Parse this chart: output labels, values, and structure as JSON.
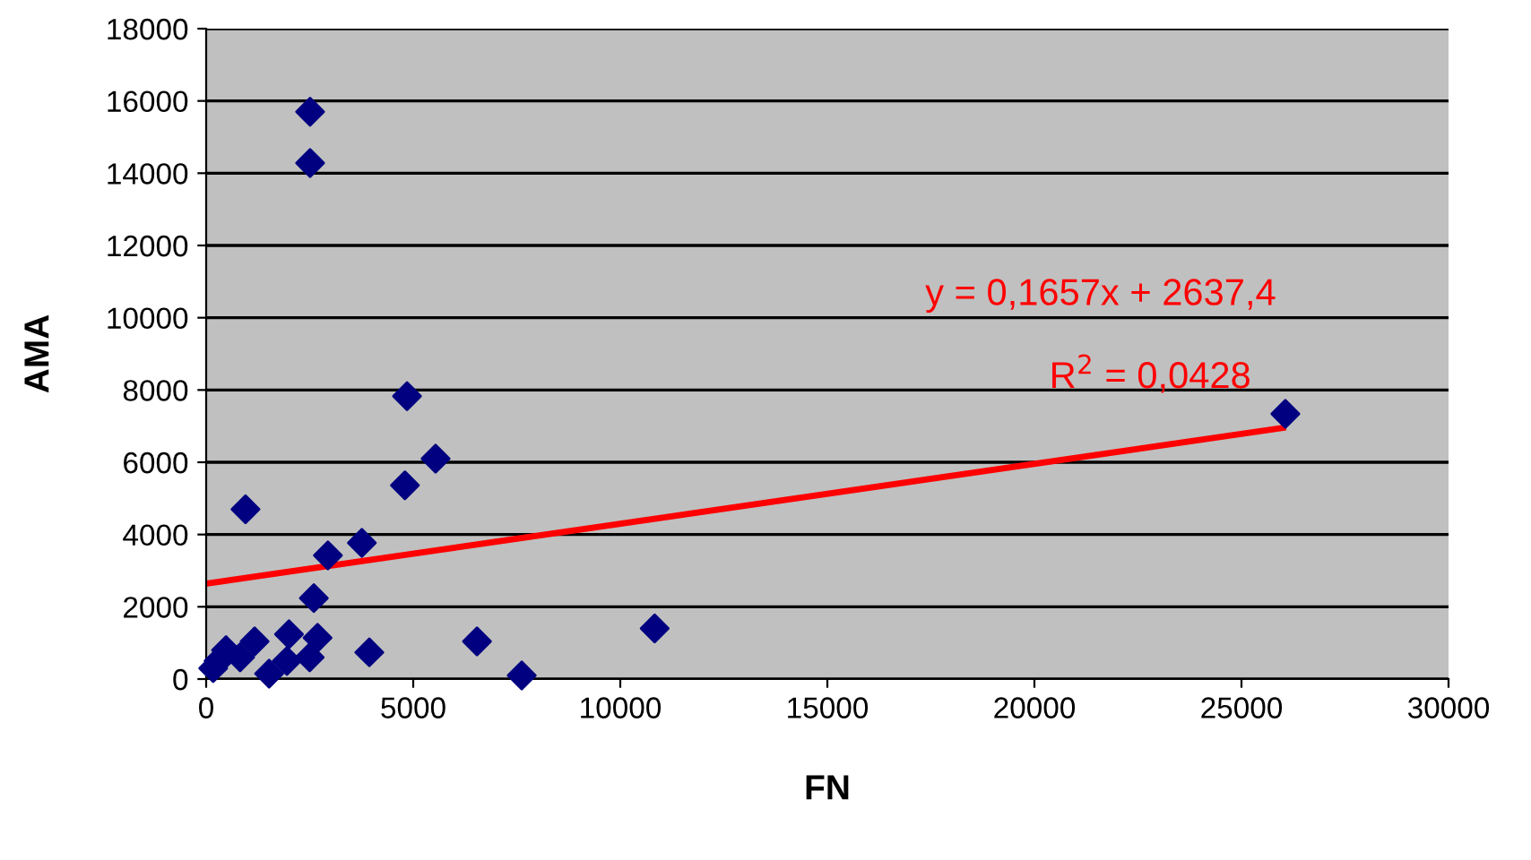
{
  "chart_data": {
    "type": "scatter",
    "xlabel": "FN",
    "ylabel": "AMA",
    "xlim": [
      0,
      30000
    ],
    "ylim": [
      0,
      18000
    ],
    "xticks": [
      0,
      5000,
      10000,
      15000,
      20000,
      25000,
      30000
    ],
    "yticks": [
      0,
      2000,
      4000,
      6000,
      8000,
      10000,
      12000,
      14000,
      16000,
      18000
    ],
    "grid": "y",
    "series": [
      {
        "marker": "diamond",
        "color": "#000080",
        "x": [
          170,
          300,
          480,
          820,
          1170,
          950,
          1520,
          1950,
          2000,
          2500,
          2690,
          2600,
          2940,
          3760,
          3940,
          4800,
          6540,
          7620,
          2510,
          2510,
          4850,
          5540,
          10830,
          26060
        ],
        "values": [
          300,
          500,
          800,
          600,
          1040,
          4700,
          150,
          500,
          1240,
          600,
          1140,
          2240,
          3420,
          3770,
          740,
          5360,
          1040,
          100,
          15700,
          14280,
          7830,
          6100,
          1400,
          7340
        ]
      },
      {
        "type": "line",
        "color": "#ff0000",
        "x": [
          0,
          26000
        ],
        "values": [
          2640,
          6950
        ]
      }
    ],
    "annotations": [
      "y = 0,1657x + 2637,4",
      "R$^{2}$ = 0,0428"
    ]
  }
}
